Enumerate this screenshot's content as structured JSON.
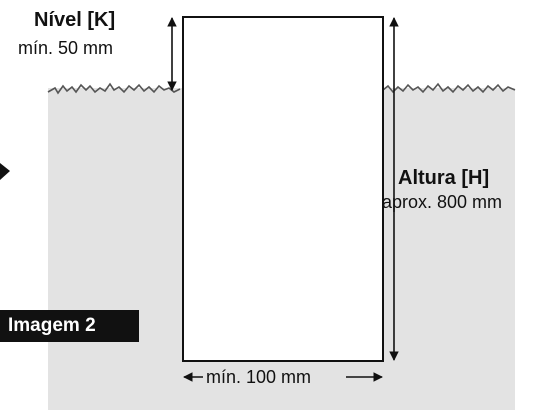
{
  "level_label": {
    "title": "Nível [K]",
    "value": "mín. 50 mm"
  },
  "height_label": {
    "title": "Altura [H]",
    "value": "aprox. 800 mm"
  },
  "width_label": {
    "value": "mín. 100 mm"
  },
  "image_badge": {
    "text": "Imagem 2"
  },
  "colors": {
    "ground_fill": "#e3e3e3",
    "grass": "#555555",
    "badge_bg": "#111111",
    "badge_text": "#ffffff",
    "outline": "#111111"
  }
}
